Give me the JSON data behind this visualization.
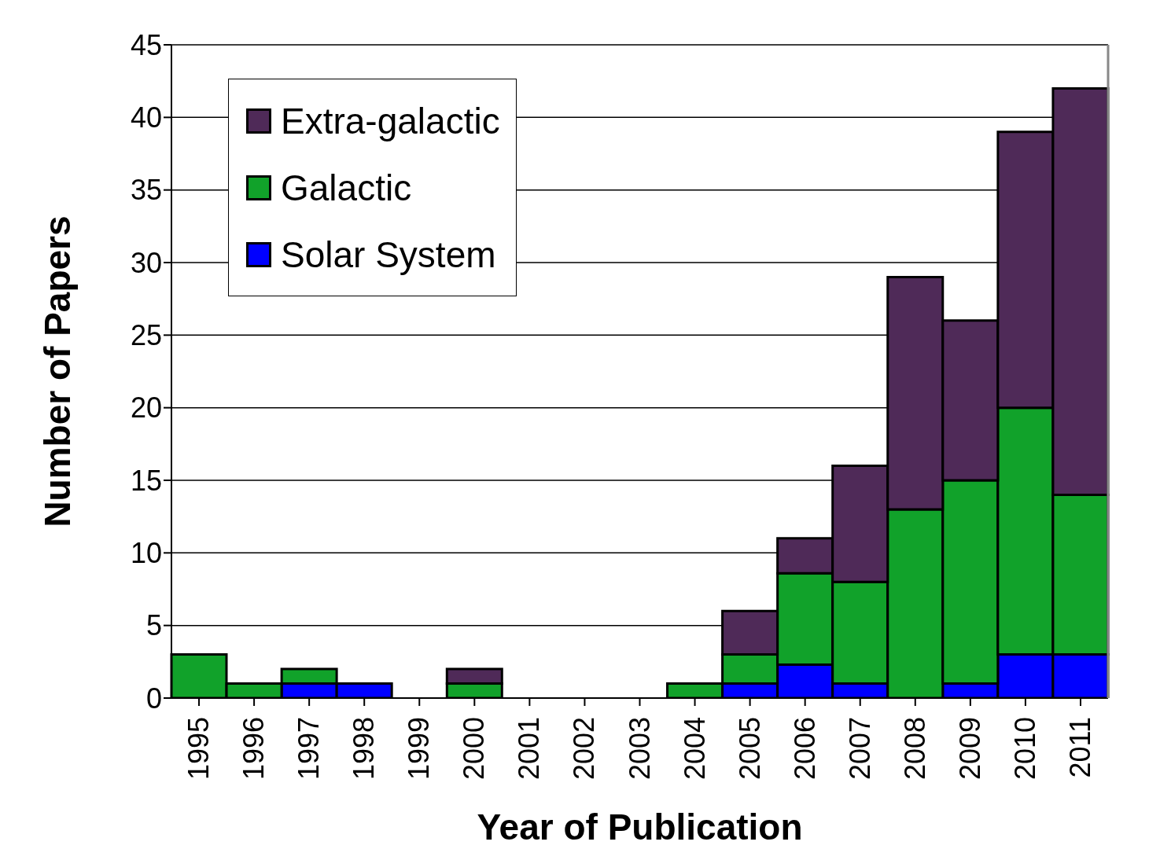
{
  "chart_data": {
    "type": "bar",
    "stacked": true,
    "xlabel": "Year of Publication",
    "ylabel": "Number of Papers",
    "categories": [
      "1995",
      "1996",
      "1997",
      "1998",
      "1999",
      "2000",
      "2001",
      "2002",
      "2003",
      "2004",
      "2005",
      "2006",
      "2007",
      "2008",
      "2009",
      "2010",
      "2011"
    ],
    "series": [
      {
        "name": "Solar System",
        "color": "#0000ff",
        "values": [
          0,
          0,
          1,
          1,
          0,
          0,
          0,
          0,
          0,
          0,
          1,
          2.3,
          1,
          0,
          1,
          3,
          3
        ]
      },
      {
        "name": "Galactic",
        "color": "#11a22a",
        "values": [
          3,
          1,
          1,
          0,
          0,
          1,
          0,
          0,
          0,
          1,
          2,
          6.3,
          7,
          13,
          14,
          17,
          11
        ]
      },
      {
        "name": "Extra-galactic",
        "color": "#4f2a58",
        "values": [
          0,
          0,
          0,
          0,
          0,
          1,
          0,
          0,
          0,
          0,
          3,
          2.4,
          8,
          16,
          11,
          19,
          28
        ]
      }
    ],
    "ylim": [
      0,
      45
    ],
    "yticks": [
      0,
      5,
      10,
      15,
      20,
      25,
      30,
      35,
      40,
      45
    ],
    "grid": "y",
    "legend": "top left"
  }
}
